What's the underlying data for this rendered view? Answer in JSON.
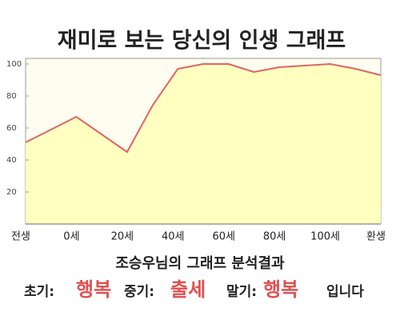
{
  "chart_data": {
    "type": "area",
    "title": "재미로 보는 당신의 인생 그래프",
    "categories": [
      "전생",
      null,
      "0세",
      null,
      "20세",
      null,
      "40세",
      null,
      "60세",
      null,
      "80세",
      null,
      "100세",
      null,
      "환생"
    ],
    "values": [
      51,
      59,
      67,
      56,
      45,
      74,
      97,
      100,
      100,
      95,
      98,
      99,
      100,
      97,
      93
    ],
    "color": "#e06464",
    "fill": "#ffffc0",
    "ylim": [
      0,
      100
    ],
    "yticks": [
      20,
      40,
      60,
      80,
      100
    ]
  },
  "result": {
    "heading": "조승우님의 그래프 분석결과",
    "items": [
      "초기:",
      "행복",
      "중기:",
      "출세",
      "말기:",
      "행복",
      "입니다"
    ]
  }
}
